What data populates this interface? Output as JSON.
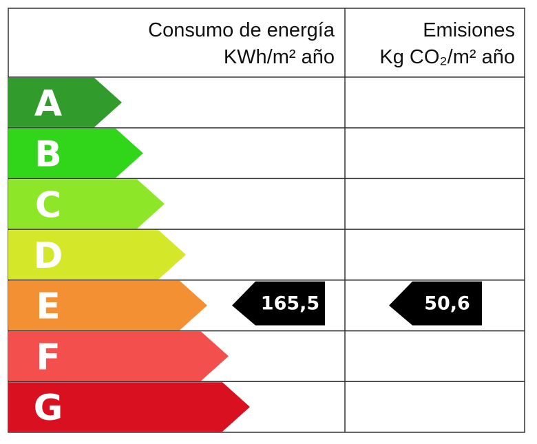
{
  "header": {
    "energy": {
      "title": "Consumo de energía",
      "unit": "KWh/m² año"
    },
    "emissions": {
      "title": "Emisiones",
      "unit": "Kg CO₂/m² año"
    }
  },
  "grades": [
    {
      "letter": "A",
      "color": "#319b2c"
    },
    {
      "letter": "B",
      "color": "#31d61b"
    },
    {
      "letter": "C",
      "color": "#8ee629"
    },
    {
      "letter": "D",
      "color": "#d4e728"
    },
    {
      "letter": "E",
      "color": "#f39033",
      "energy": "165,5",
      "emissions": "50,6"
    },
    {
      "letter": "F",
      "color": "#f34f4d"
    },
    {
      "letter": "G",
      "color": "#d8101f"
    }
  ]
}
